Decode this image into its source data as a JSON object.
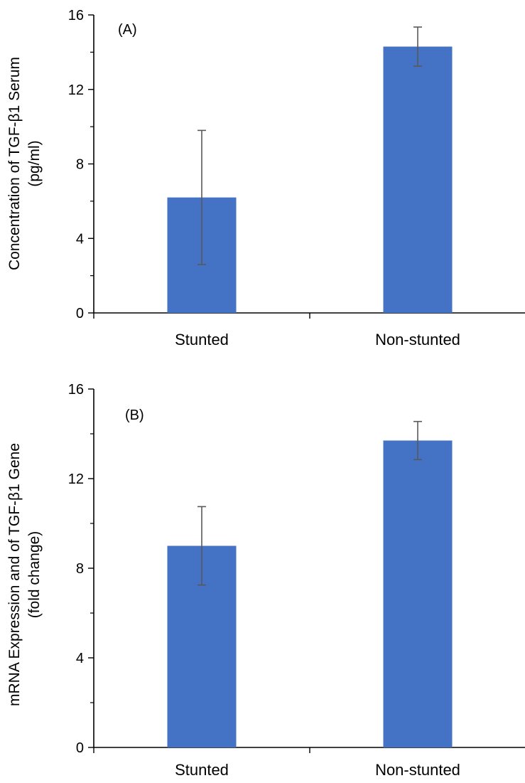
{
  "chart_data": [
    {
      "type": "bar",
      "panel_label": "(A)",
      "categories": [
        "Stunted",
        "Non-stunted"
      ],
      "values": [
        6.2,
        14.3
      ],
      "error": [
        3.6,
        1.05
      ],
      "ylabel_line1": "Concentration of TGF-β1 Serum",
      "ylabel_line2": "(pg/ml)",
      "ylim": [
        0,
        16
      ],
      "yticks": [
        "0",
        "4",
        "8",
        "12",
        "16"
      ],
      "ytick_values": [
        0,
        4,
        8,
        12,
        16
      ],
      "grid": false,
      "bar_color": "#4472c4",
      "error_color": "#595959"
    },
    {
      "type": "bar",
      "panel_label": "(B)",
      "categories": [
        "Stunted",
        "Non-stunted"
      ],
      "values": [
        9.0,
        13.7
      ],
      "error": [
        1.75,
        0.85
      ],
      "ylabel_line1": "mRNA Expression and  of TGF-β1 Gene",
      "ylabel_line2": "(fold change)",
      "ylim": [
        0,
        16
      ],
      "yticks": [
        "0",
        "4",
        "8",
        "12",
        "16"
      ],
      "ytick_values": [
        0,
        4,
        8,
        12,
        16
      ],
      "grid": false,
      "bar_color": "#4472c4",
      "error_color": "#595959"
    }
  ]
}
